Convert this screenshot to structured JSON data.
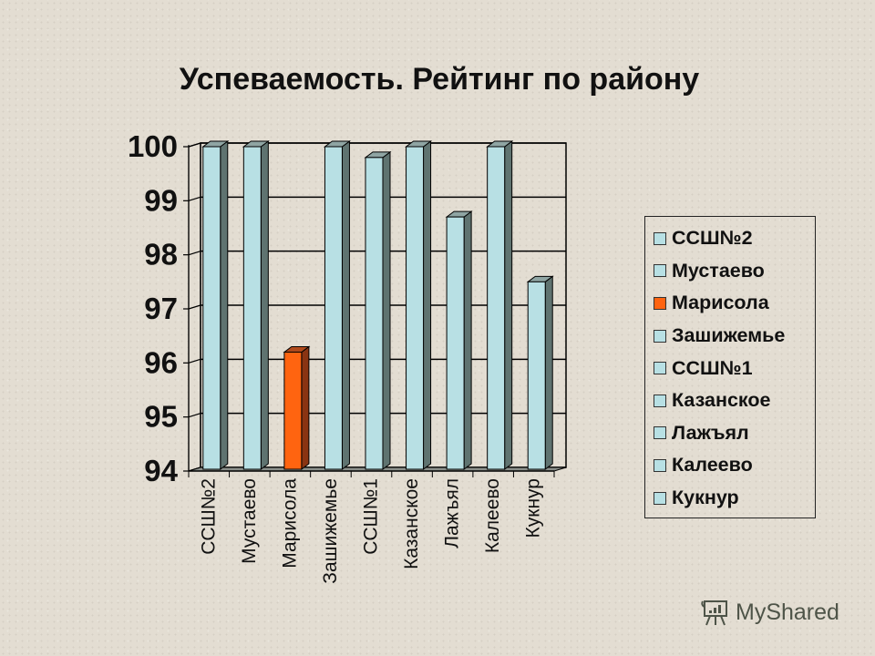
{
  "title": "Успеваемость. Рейтинг по району",
  "watermark": {
    "text": "MyShared",
    "icon": "presentation-board-icon"
  },
  "colors": {
    "bar_default": "#b8e0e4",
    "bar_default_side": "#5f7370",
    "bar_highlight": "#ff6410",
    "bar_highlight_side": "#8a3412",
    "background": "#e3ddd2",
    "gridline": "#000000"
  },
  "legend": {
    "position": "right",
    "items": [
      {
        "label": "ССШ№2",
        "color": "#b8e0e4"
      },
      {
        "label": "Мустаево",
        "color": "#b8e0e4"
      },
      {
        "label": "Марисола",
        "color": "#ff6410"
      },
      {
        "label": "Зашижемье",
        "color": "#b8e0e4"
      },
      {
        "label": "ССШ№1",
        "color": "#b8e0e4"
      },
      {
        "label": "Казанское",
        "color": "#b8e0e4"
      },
      {
        "label": "Лажъял",
        "color": "#b8e0e4"
      },
      {
        "label": "Калеево",
        "color": "#b8e0e4"
      },
      {
        "label": "Кукнур",
        "color": "#b8e0e4"
      }
    ]
  },
  "chart_data": {
    "type": "bar",
    "style": "3d-column",
    "title": "Успеваемость. Рейтинг по району",
    "xlabel": "",
    "ylabel": "",
    "categories": [
      "ССШ№2",
      "Мустаево",
      "Марисола",
      "Зашижемье",
      "ССШ№1",
      "Казанское",
      "Лажъял",
      "Калеево",
      "Кукнур"
    ],
    "values": [
      100,
      100,
      96.2,
      100,
      99.8,
      100,
      98.7,
      100,
      97.5
    ],
    "highlight_index": 2,
    "ylim": [
      94,
      100
    ],
    "yticks": [
      "94",
      "95",
      "96",
      "97",
      "98",
      "99",
      "100"
    ],
    "grid": true,
    "legend_position": "right"
  }
}
